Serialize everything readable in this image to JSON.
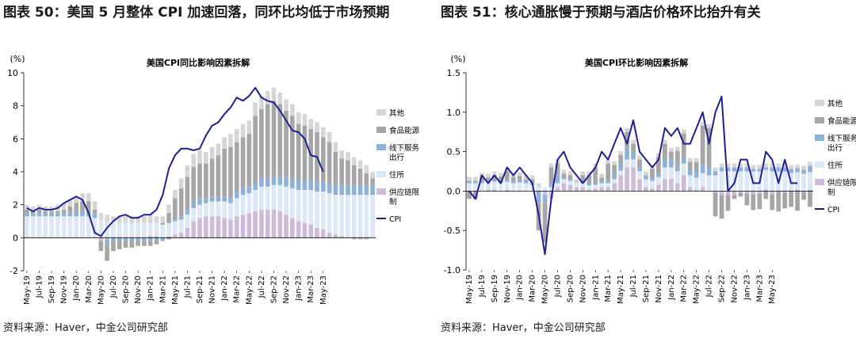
{
  "left_panel": {
    "heading": "图表 50：美国 5 月整体 CPI 加速回落，同环比均低于市场预期",
    "source": "资料来源：Haver，中金公司研究部"
  },
  "right_panel": {
    "heading": "图表 51：核心通胀慢于预期与酒店价格环比抬升有关",
    "source": "资料来源：Haver，中金公司研究部"
  },
  "colors": {
    "other": "#d6d6d6",
    "food_energy": "#a6a6a6",
    "offline_services": "#8fb0d9",
    "housing": "#dce8f5",
    "supply_chain": "#cdbcd9",
    "cpi": "#1f1f8f"
  },
  "chart_data": [
    {
      "type": "bar",
      "stacked": true,
      "title": "美国CPI同比影响因素拆解",
      "unit": "(%)",
      "ylim": [
        -2,
        10
      ],
      "yticks": [
        -2,
        0,
        2,
        4,
        6,
        8,
        10
      ],
      "xtick_labels": [
        "May-19",
        "Jul-19",
        "Sep-19",
        "Nov-19",
        "Jan-20",
        "Mar-20",
        "May-20",
        "Jul-20",
        "Sep-20",
        "Nov-20",
        "Jan-21",
        "Mar-21",
        "May-21",
        "Jul-21",
        "Sep-21",
        "Nov-21",
        "Jan-22",
        "Mar-22",
        "May-22",
        "Jul-22",
        "Sep-22",
        "Nov-22",
        "Jan-23",
        "Mar-23",
        "May-23"
      ],
      "legend": [
        "其他",
        "食品能源",
        "线下服务出行",
        "住所",
        "供应链限制",
        "CPI"
      ],
      "series": [
        {
          "name": "供应链限制",
          "values": [
            0,
            0,
            0,
            0,
            0,
            0,
            0,
            0,
            0,
            0,
            0,
            0,
            -0.2,
            -0.1,
            0,
            0,
            0,
            0,
            0,
            0,
            0.1,
            0.1,
            0,
            0.1,
            0.2,
            0.3,
            0.6,
            1.0,
            1.2,
            1.3,
            1.3,
            1.3,
            1.2,
            1.1,
            1.3,
            1.4,
            1.5,
            1.6,
            1.7,
            1.7,
            1.7,
            1.6,
            1.4,
            1.2,
            1.0,
            0.9,
            0.8,
            0.6,
            0.5,
            0.3,
            0.2,
            0.1,
            0,
            -0.1,
            -0.1,
            -0.1,
            0
          ]
        },
        {
          "name": "住所",
          "values": [
            1.3,
            1.3,
            1.3,
            1.3,
            1.3,
            1.3,
            1.3,
            1.3,
            1.3,
            1.3,
            1.3,
            1.2,
            1.1,
            1.0,
            1.0,
            0.9,
            0.9,
            0.9,
            0.9,
            0.9,
            0.8,
            0.8,
            0.8,
            0.8,
            0.8,
            0.8,
            0.8,
            0.8,
            0.8,
            0.8,
            0.9,
            0.9,
            1.0,
            1.0,
            1.1,
            1.2,
            1.2,
            1.3,
            1.4,
            1.4,
            1.5,
            1.6,
            1.7,
            1.8,
            1.9,
            2.0,
            2.1,
            2.2,
            2.3,
            2.4,
            2.4,
            2.5,
            2.6,
            2.6,
            2.6,
            2.6,
            2.6
          ]
        },
        {
          "name": "线下服务出行",
          "values": [
            0.2,
            0.2,
            0.2,
            0.2,
            0.2,
            0.2,
            0.2,
            0.2,
            0.3,
            0.3,
            0.3,
            0.3,
            0,
            -0.3,
            -0.2,
            -0.2,
            -0.2,
            -0.2,
            -0.2,
            -0.2,
            -0.2,
            -0.2,
            -0.2,
            -0.1,
            0.1,
            0.2,
            0.3,
            0.4,
            0.4,
            0.3,
            0.3,
            0.3,
            0.3,
            0.4,
            0.4,
            0.4,
            0.4,
            0.5,
            0.5,
            0.5,
            0.5,
            0.5,
            0.6,
            0.6,
            0.6,
            0.6,
            0.6,
            0.6,
            0.6,
            0.6,
            0.6,
            0.6,
            0.6,
            0.6,
            0.6,
            0.6,
            0.6
          ]
        },
        {
          "name": "食品能源",
          "values": [
            0.2,
            0.1,
            0.2,
            0.1,
            0.1,
            0.1,
            0.2,
            0.4,
            0.5,
            0.6,
            0.6,
            0.2,
            -0.6,
            -1.0,
            -0.6,
            -0.5,
            -0.4,
            -0.4,
            -0.3,
            -0.3,
            -0.3,
            -0.2,
            0.1,
            0.6,
            1.3,
            1.7,
            2.0,
            2.1,
            2.1,
            2.1,
            2.3,
            2.5,
            2.9,
            3.0,
            3.0,
            3.1,
            3.2,
            4.0,
            4.2,
            4.5,
            4.6,
            4.4,
            4.0,
            3.8,
            3.4,
            3.3,
            3.1,
            3.0,
            2.7,
            2.5,
            2.0,
            1.6,
            1.5,
            1.2,
            1.0,
            0.7,
            0.4
          ]
        },
        {
          "name": "其他",
          "values": [
            0.3,
            0.3,
            0.3,
            0.3,
            0.3,
            0.4,
            0.4,
            0.4,
            0.4,
            0.5,
            0.5,
            0.5,
            0.4,
            0.4,
            0.3,
            0.4,
            0.4,
            0.4,
            0.4,
            0.4,
            0.5,
            0.4,
            0.4,
            0.5,
            0.5,
            0.6,
            0.7,
            0.8,
            0.8,
            0.7,
            0.7,
            0.7,
            0.7,
            0.8,
            0.8,
            0.8,
            0.8,
            0.8,
            0.8,
            0.8,
            0.8,
            0.7,
            0.7,
            0.7,
            0.7,
            0.7,
            0.6,
            0.6,
            0.6,
            0.6,
            0.6,
            0.5,
            0.5,
            0.5,
            0.5,
            0.5,
            0.4
          ]
        },
        {
          "name": "CPI",
          "kind": "line",
          "values": [
            1.8,
            1.6,
            1.8,
            1.7,
            1.7,
            1.8,
            2.1,
            2.3,
            2.5,
            2.3,
            1.5,
            0.3,
            0.1,
            0.6,
            1.0,
            1.3,
            1.4,
            1.2,
            1.2,
            1.4,
            1.4,
            1.7,
            2.6,
            4.2,
            5.0,
            5.4,
            5.4,
            5.3,
            5.4,
            6.2,
            6.8,
            7.0,
            7.5,
            7.9,
            8.5,
            8.3,
            8.6,
            9.1,
            8.5,
            8.3,
            8.2,
            7.7,
            7.1,
            6.5,
            6.4,
            6.0,
            5.0,
            4.9,
            4.0,
            null,
            null,
            null,
            null,
            null,
            null,
            null,
            null
          ]
        }
      ]
    },
    {
      "type": "bar",
      "stacked": true,
      "title": "美国CPI环比影响因素拆解",
      "unit": "(%)",
      "ylim": [
        -1.0,
        1.5
      ],
      "yticks": [
        "1.5",
        "1.0",
        "0.5",
        "0.0",
        "-0.5",
        "-1.0"
      ],
      "xtick_labels": [
        "May-19",
        "Jul-19",
        "Sep-19",
        "Nov-19",
        "Jan-20",
        "Mar-20",
        "May-20",
        "Jul-20",
        "Sep-20",
        "Nov-20",
        "Jan-21",
        "Mar-21",
        "May-21",
        "Jul-21",
        "Sep-21",
        "Nov-21",
        "Jan-22",
        "Mar-22",
        "May-22",
        "Jul-22",
        "Sep-22",
        "Nov-22",
        "Jan-23",
        "Mar-23",
        "May-23"
      ],
      "legend": [
        "其他",
        "食品能源",
        "线下服务出行",
        "住所",
        "供应链限制",
        "CPI"
      ],
      "series": [
        {
          "name": "供应链限制",
          "values": [
            0,
            0,
            0,
            0.02,
            0.02,
            0,
            0.02,
            0,
            0.01,
            0,
            0,
            0,
            -0.05,
            -0.1,
            0.05,
            0.1,
            0.08,
            0.05,
            0.05,
            0.02,
            0.03,
            0.05,
            0.05,
            0.1,
            0.2,
            0.3,
            0.3,
            0.15,
            0.05,
            0.03,
            0.08,
            0.15,
            0.15,
            0.1,
            0.2,
            0.05,
            0.02,
            0.05,
            0,
            -0.02,
            -0.05,
            -0.05,
            -0.05,
            -0.02,
            -0.03,
            -0.04,
            -0.03,
            0.02,
            -0.04,
            -0.01,
            -0.02,
            0.01,
            0.02,
            -0.01,
            0.02
          ]
        },
        {
          "name": "住所",
          "values": [
            0.1,
            0.1,
            0.1,
            0.1,
            0.1,
            0.1,
            0.1,
            0.1,
            0.1,
            0.1,
            0.08,
            0.05,
            0.05,
            0.05,
            0.05,
            0.05,
            0.05,
            0.05,
            0.05,
            0.05,
            0.05,
            0.05,
            0.05,
            0.05,
            0.06,
            0.1,
            0.1,
            0.1,
            0.1,
            0.1,
            0.1,
            0.15,
            0.15,
            0.15,
            0.15,
            0.15,
            0.15,
            0.18,
            0.2,
            0.2,
            0.25,
            0.25,
            0.25,
            0.25,
            0.25,
            0.25,
            0.25,
            0.25,
            0.25,
            0.25,
            0.25,
            0.22,
            0.22,
            0.22,
            0.22
          ]
        },
        {
          "name": "线下服务出行",
          "values": [
            0.03,
            0.03,
            0.03,
            0.03,
            0.03,
            0.03,
            0.03,
            0.03,
            0.03,
            0.03,
            0.02,
            -0.15,
            -0.1,
            0.05,
            0.1,
            0.02,
            0.02,
            0,
            0,
            0.03,
            0.02,
            0.02,
            0.05,
            0.08,
            0.1,
            0.15,
            0.1,
            0.05,
            0.05,
            0.05,
            0.05,
            0.1,
            0.1,
            0.06,
            0.08,
            0.07,
            0.1,
            0.1,
            0.1,
            0.05,
            0.05,
            0.05,
            0.05,
            0.05,
            0.05,
            0.03,
            0.03,
            0.03,
            0.05,
            0.05,
            0.05,
            0.05,
            0.05,
            0.05,
            0.08
          ]
        },
        {
          "name": "食品能源",
          "values": [
            -0.1,
            -0.1,
            0.05,
            0.02,
            0.05,
            0.05,
            0.1,
            0.05,
            0.05,
            0.02,
            0.05,
            -0.35,
            -0.5,
            0.2,
            0.15,
            0.05,
            0.05,
            0,
            0.1,
            0.1,
            0.2,
            0.05,
            0.2,
            0.1,
            0.1,
            0.2,
            0.1,
            0.1,
            0,
            0.1,
            0.2,
            0.2,
            0.1,
            0.2,
            0.3,
            0.1,
            0.1,
            0.5,
            0.5,
            -0.3,
            -0.3,
            -0.2,
            -0.05,
            -0.05,
            -0.15,
            -0.2,
            -0.2,
            -0.1,
            -0.2,
            -0.25,
            -0.2,
            -0.2,
            -0.25,
            -0.1,
            -0.2
          ]
        },
        {
          "name": "其他",
          "values": [
            0.05,
            0.05,
            0.05,
            0.05,
            0.05,
            0.05,
            0.05,
            0.05,
            0.05,
            0.05,
            0.05,
            0.05,
            0,
            0.05,
            0.05,
            0.05,
            0.05,
            0.05,
            0.05,
            0.05,
            0.05,
            0.05,
            0.05,
            0.05,
            0.05,
            0.05,
            0.05,
            0.05,
            0.05,
            0.05,
            0.05,
            0.05,
            0.05,
            0.05,
            0.05,
            0.05,
            0.05,
            0.05,
            0.05,
            0.05,
            0.05,
            0.05,
            0.05,
            0.05,
            0.05,
            0.05,
            0.05,
            0.05,
            0.05,
            0.05,
            0.05,
            0.05,
            0.05,
            0.05,
            0.05
          ]
        },
        {
          "name": "CPI",
          "kind": "line",
          "values": [
            0,
            -0.1,
            0.2,
            0.1,
            0.2,
            0.1,
            0.3,
            0.2,
            0.3,
            0.2,
            0.1,
            -0.3,
            -0.8,
            -0.1,
            0.4,
            0.5,
            0.3,
            0.2,
            0.1,
            0.2,
            0.3,
            0.5,
            0.4,
            0.6,
            0.8,
            0.6,
            0.9,
            0.5,
            0.4,
            0.3,
            0.4,
            0.8,
            0.7,
            0.8,
            0.6,
            0.6,
            0.8,
            1.0,
            0.6,
            1.0,
            1.2,
            0,
            0.1,
            0.4,
            0.4,
            0.1,
            0.1,
            0.5,
            0.4,
            0.1,
            0.4,
            0.1,
            0.1
          ]
        }
      ]
    }
  ]
}
